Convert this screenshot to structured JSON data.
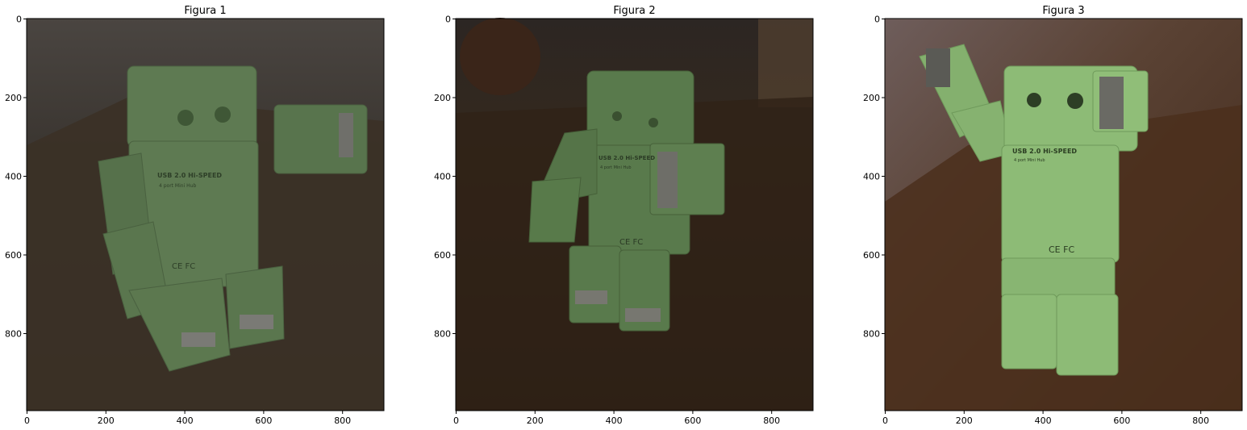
{
  "chart_data": [
    {
      "type": "image",
      "title": "Figura 1",
      "xticks": [
        0,
        200,
        400,
        600,
        800
      ],
      "yticks": [
        0,
        200,
        400,
        600,
        800
      ],
      "xlim": [
        0,
        906
      ],
      "ylim": [
        1000,
        0
      ],
      "image_content": "dim green toy robot USB hub on a wooden desk",
      "image_text": [
        "USB 2.0 Hi-SPEED",
        "4 port Mini Hub",
        "CE FC"
      ],
      "colors": {
        "background": "#342f2a",
        "robot": "#5e7a52",
        "desk": "#3b3126"
      }
    },
    {
      "type": "image",
      "title": "Figura 2",
      "xticks": [
        0,
        200,
        400,
        600,
        800
      ],
      "yticks": [
        0,
        200,
        400,
        600,
        800
      ],
      "xlim": [
        0,
        906
      ],
      "ylim": [
        1000,
        0
      ],
      "image_content": "dark green toy robot USB hub with raised arm on a brown desk",
      "image_text": [
        "USB 2.0 Hi-SPEED",
        "4 port Mini Hub",
        "CE FC"
      ],
      "colors": {
        "background": "#2a2018",
        "robot": "#597a4c",
        "desk": "#2f2216"
      }
    },
    {
      "type": "image",
      "title": "Figura 3",
      "xticks": [
        0,
        200,
        400,
        600,
        800
      ],
      "yticks": [
        0,
        200,
        400,
        600,
        800
      ],
      "xlim": [
        0,
        906
      ],
      "ylim": [
        1000,
        0
      ],
      "image_content": "brighter green toy robot USB hub waving on a wooden desk",
      "image_text": [
        "USB 2.0 Hi-SPEED",
        "4 port Mini Hub",
        "CE FC"
      ],
      "colors": {
        "background": "#4a3a34",
        "robot": "#8dbb76",
        "desk": "#4b2f1c"
      }
    }
  ]
}
